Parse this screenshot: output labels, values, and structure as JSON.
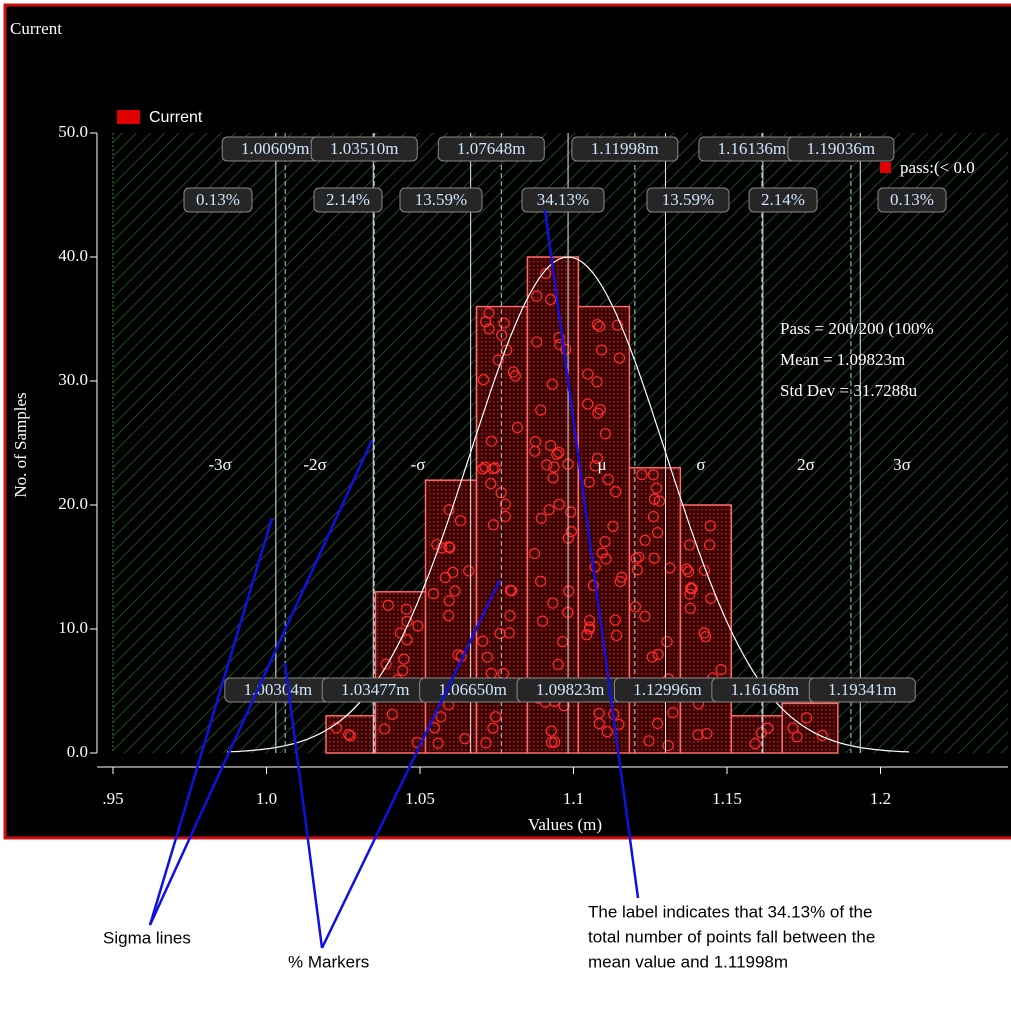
{
  "chart_data": {
    "type": "histogram",
    "title": "Current",
    "series_name": "Current",
    "color": "#ff6a6a",
    "bins": [
      1.0194,
      1.0355,
      1.0518,
      1.0684,
      1.085,
      1.1016,
      1.1182,
      1.1348,
      1.1514,
      1.168,
      1.1861
    ],
    "values": [
      3,
      13,
      22,
      36,
      40,
      36,
      23,
      20,
      3,
      4
    ],
    "xlim": [
      0.95,
      1.243
    ],
    "ylim": [
      0,
      50
    ],
    "xticks": [
      {
        "value": 0.95,
        "label": ".95"
      },
      {
        "value": 1,
        "label": "1.0"
      },
      1.05,
      1.1,
      1.15,
      1.2
    ],
    "yticks": [
      {
        "value": 0,
        "label": "0.0"
      },
      {
        "value": 10,
        "label": "10.0"
      },
      {
        "value": 20,
        "label": "20.0"
      },
      {
        "value": 30,
        "label": "30.0"
      },
      {
        "value": 40,
        "label": "40.0"
      },
      {
        "value": 50,
        "label": "50.0"
      }
    ],
    "xlabel": "Values (m)",
    "ylabel": "No. of Samples",
    "sigma_lines": [
      {
        "value": 1.00304,
        "label": "1.00304m"
      },
      {
        "value": 1.03477,
        "label": "1.03477m"
      },
      {
        "value": 1.0665,
        "label": "1.06650m"
      },
      {
        "value": 1.09823,
        "label": "1.09823m"
      },
      {
        "value": 1.12996,
        "label": "1.12996m"
      },
      {
        "value": 1.16168,
        "label": "1.16168m"
      },
      {
        "value": 1.19341,
        "label": "1.19341m"
      }
    ],
    "sigma_labels": [
      "-3σ",
      "-2σ",
      "-σ",
      "μ",
      "σ",
      "2σ",
      "3σ"
    ],
    "percent_markers": [
      {
        "value": 1.00609,
        "label": "1.00609m"
      },
      {
        "value": 1.0351,
        "label": "1.03510m"
      },
      {
        "value": 1.07648,
        "label": "1.07648m"
      },
      {
        "value": 1.11998,
        "label": "1.11998m"
      },
      {
        "value": 1.16136,
        "label": "1.16136m"
      },
      {
        "value": 1.19036,
        "label": "1.19036m"
      }
    ],
    "percent_labels": [
      "0.13%",
      "2.14%",
      "13.59%",
      "34.13%",
      "13.59%",
      "2.14%",
      "0.13%"
    ],
    "stats": [
      "Pass = 200/200 (100%",
      "Mean = 1.09823m",
      "Std Dev = 31.7288u"
    ],
    "filter_legend": "pass:(< 0.0"
  },
  "annotations": [
    {
      "text": "Sigma lines"
    },
    {
      "text": "% Markers"
    },
    {
      "lines": [
        "The label indicates that 34.13% of the",
        "total number of points fall between the",
        "mean value and 1.11998m"
      ]
    }
  ]
}
